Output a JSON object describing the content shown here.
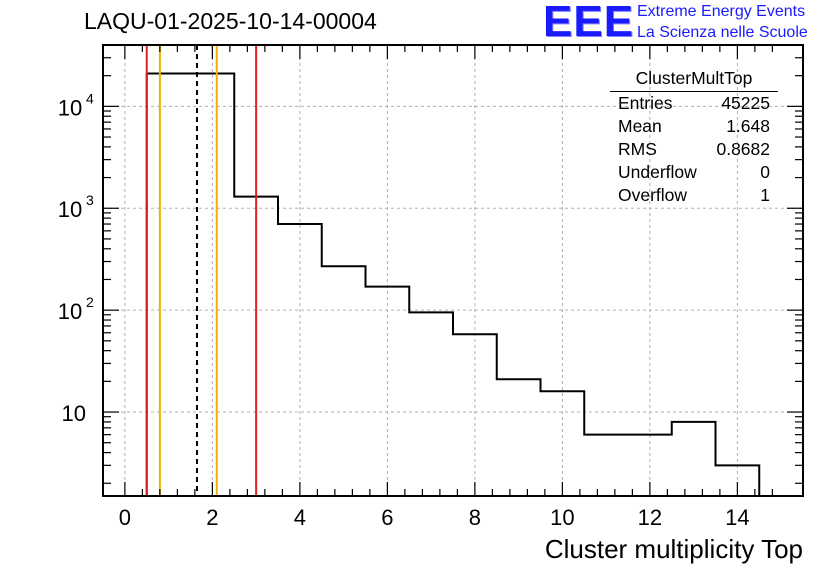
{
  "chart_data": {
    "type": "histogram",
    "title": "LAQU-01-2025-10-14-00004",
    "xlabel": "Cluster multiplicity Top",
    "ylabel": "",
    "yscale": "log",
    "xlim": [
      -0.5,
      15.5
    ],
    "ylim": [
      1.5,
      40000
    ],
    "grid": true,
    "bin_edges": [
      0.5,
      1.5,
      2.5,
      3.5,
      4.5,
      5.5,
      6.5,
      7.5,
      8.5,
      9.5,
      10.5,
      11.5,
      12.5,
      13.5,
      14.5
    ],
    "values": [
      21000,
      21000,
      1300,
      700,
      270,
      170,
      95,
      58,
      21,
      16,
      6,
      6,
      8,
      3
    ],
    "x_ticks": [
      0,
      2,
      4,
      6,
      8,
      10,
      12,
      14
    ],
    "x_tick_labels": [
      "0",
      "2",
      "4",
      "6",
      "8",
      "10",
      "12",
      "14"
    ],
    "y_ticks": [
      10,
      100,
      1000,
      10000
    ],
    "y_tick_labels": [
      {
        "base": "10",
        "exp": ""
      },
      {
        "base": "10",
        "exp": "2"
      },
      {
        "base": "10",
        "exp": "3"
      },
      {
        "base": "10",
        "exp": "4"
      }
    ],
    "vertical_lines": [
      {
        "x": 0.5,
        "color": "#e02020",
        "style": "solid"
      },
      {
        "x": 0.8,
        "color": "#f0b000",
        "style": "solid"
      },
      {
        "x": 1.648,
        "color": "#000000",
        "style": "dashed"
      },
      {
        "x": 2.1,
        "color": "#f0b000",
        "style": "solid"
      },
      {
        "x": 3.0,
        "color": "#e02020",
        "style": "solid"
      }
    ],
    "stats": {
      "name": "ClusterMultTop",
      "rows": [
        {
          "label": "Entries",
          "value": "45225"
        },
        {
          "label": "Mean",
          "value": "1.648"
        },
        {
          "label": "RMS",
          "value": "0.8682"
        },
        {
          "label": "Underflow",
          "value": "0"
        },
        {
          "label": "Overflow",
          "value": "1"
        }
      ]
    }
  },
  "logo": {
    "text": "EEE",
    "line1": "Extreme Energy Events",
    "line2": "La Scienza nelle Scuole"
  },
  "colors": {
    "logo": "#1a1aff",
    "red": "#e02020",
    "orange": "#f0b000"
  }
}
